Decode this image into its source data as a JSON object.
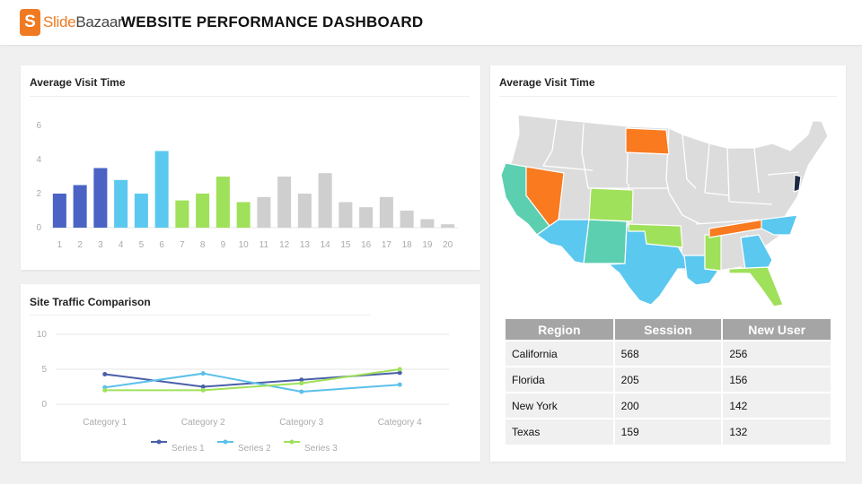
{
  "header": {
    "logo_mark": "S",
    "logo_slide": "Slide",
    "logo_bazaar": "Bazaar",
    "title": "WEBSITE PERFORMANCE DASHBOARD"
  },
  "colors": {
    "accent": "#f07a21",
    "blue_dark": "#4a63c4",
    "blue_light": "#5bc8f0",
    "green_light": "#9fe15a",
    "grey": "#cfcfcf",
    "teal": "#5ccfb0",
    "orange": "#f97a1f",
    "navy": "#1f2a44"
  },
  "bar_card": {
    "title": "Average Visit Time"
  },
  "map_card": {
    "title": "Average Visit Time"
  },
  "line_card": {
    "title": "Site Traffic Comparison"
  },
  "chart_data": [
    {
      "type": "bar",
      "title": "Average Visit Time",
      "categories": [
        "1",
        "2",
        "3",
        "4",
        "5",
        "6",
        "7",
        "8",
        "9",
        "10",
        "11",
        "12",
        "13",
        "14",
        "15",
        "16",
        "17",
        "18",
        "19",
        "20"
      ],
      "values": [
        2.0,
        2.5,
        3.5,
        2.8,
        2.0,
        4.5,
        1.6,
        2.0,
        3.0,
        1.5,
        1.8,
        3.0,
        2.0,
        3.2,
        1.5,
        1.2,
        1.8,
        1.0,
        0.5,
        0.2
      ],
      "bar_colors": [
        "#4a63c4",
        "#4a63c4",
        "#4a63c4",
        "#5bc8f0",
        "#5bc8f0",
        "#5bc8f0",
        "#9fe15a",
        "#9fe15a",
        "#9fe15a",
        "#9fe15a",
        "#cfcfcf",
        "#cfcfcf",
        "#cfcfcf",
        "#cfcfcf",
        "#cfcfcf",
        "#cfcfcf",
        "#cfcfcf",
        "#cfcfcf",
        "#cfcfcf",
        "#cfcfcf"
      ],
      "yticks": [
        0,
        2,
        4,
        6
      ],
      "ylim": [
        0,
        6
      ],
      "xlabel": "",
      "ylabel": ""
    },
    {
      "type": "line",
      "title": "Site Traffic Comparison",
      "categories": [
        "Category 1",
        "Category 2",
        "Category 3",
        "Category 4"
      ],
      "series": [
        {
          "name": "Series 1",
          "values": [
            4.3,
            2.5,
            3.5,
            4.5
          ],
          "color": "#4a5fa8"
        },
        {
          "name": "Series 2",
          "values": [
            2.4,
            4.4,
            1.8,
            2.8
          ],
          "color": "#5bc0ea"
        },
        {
          "name": "Series 3",
          "values": [
            2.0,
            2.0,
            3.0,
            5.0
          ],
          "color": "#9fe15a"
        }
      ],
      "yticks": [
        0,
        5,
        10
      ],
      "ylim": [
        0,
        10
      ],
      "legend": "bottom"
    }
  ],
  "region_table": {
    "headers": [
      "Region",
      "Session",
      "New User"
    ],
    "rows": [
      [
        "California",
        "568",
        "256"
      ],
      [
        "Florida",
        "205",
        "156"
      ],
      [
        "New York",
        "200",
        "142"
      ],
      [
        "Texas",
        "159",
        "132"
      ]
    ]
  }
}
